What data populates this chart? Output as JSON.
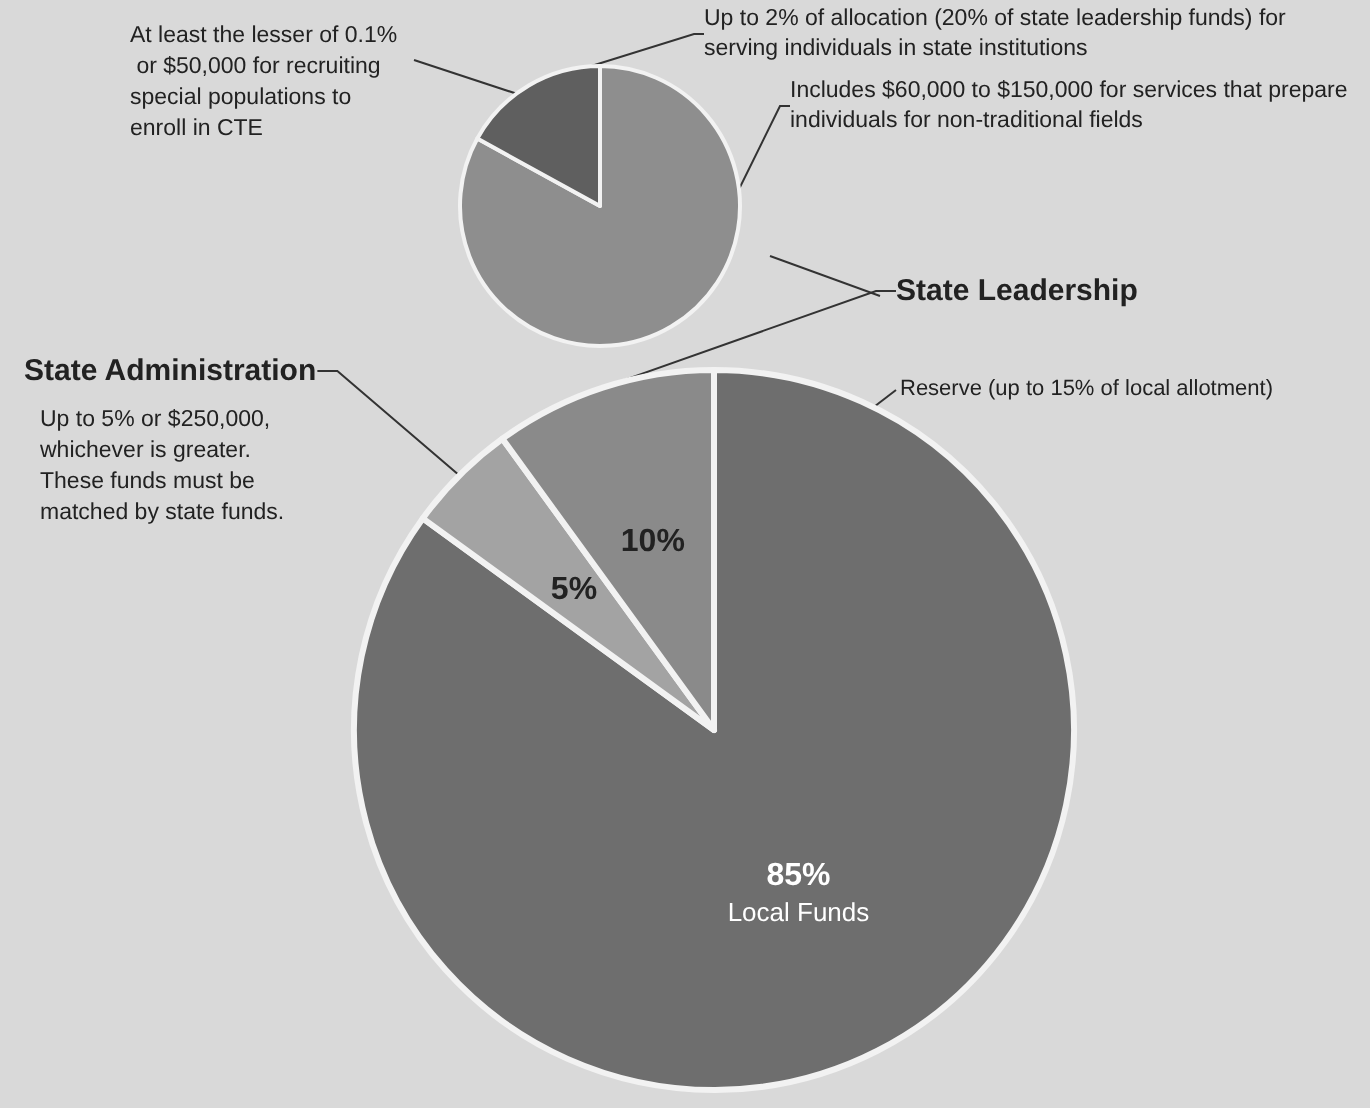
{
  "chart_data": [
    {
      "type": "pie",
      "categories": [
        "Includes $60,000 to $150,000 for services that prepare individuals for non-traditional fields",
        "Up to 2% of allocation (20% of state leadership funds) for serving individuals in state institutions"
      ],
      "values": [
        83,
        17
      ],
      "colors": [
        "#8e8e8e",
        "#5f5f5f"
      ],
      "annotations": [
        "At least the lesser of 0.1% or $50,000 for recruiting special populations to enroll in CTE"
      ]
    },
    {
      "type": "pie",
      "categories": [
        "Local Funds",
        "State Administration",
        "State Leadership"
      ],
      "values": [
        85,
        5,
        10
      ],
      "colors": [
        "#6e6e6e",
        "#a3a3a3",
        "#8a8a8a"
      ],
      "value_labels": [
        "85%",
        "5%",
        "10%"
      ],
      "annotations": [
        "Up to 5% or $250,000, whichever is greater. These funds must be matched by state funds.",
        "Reserve (up to 15% of local allotment)"
      ]
    }
  ]
}
